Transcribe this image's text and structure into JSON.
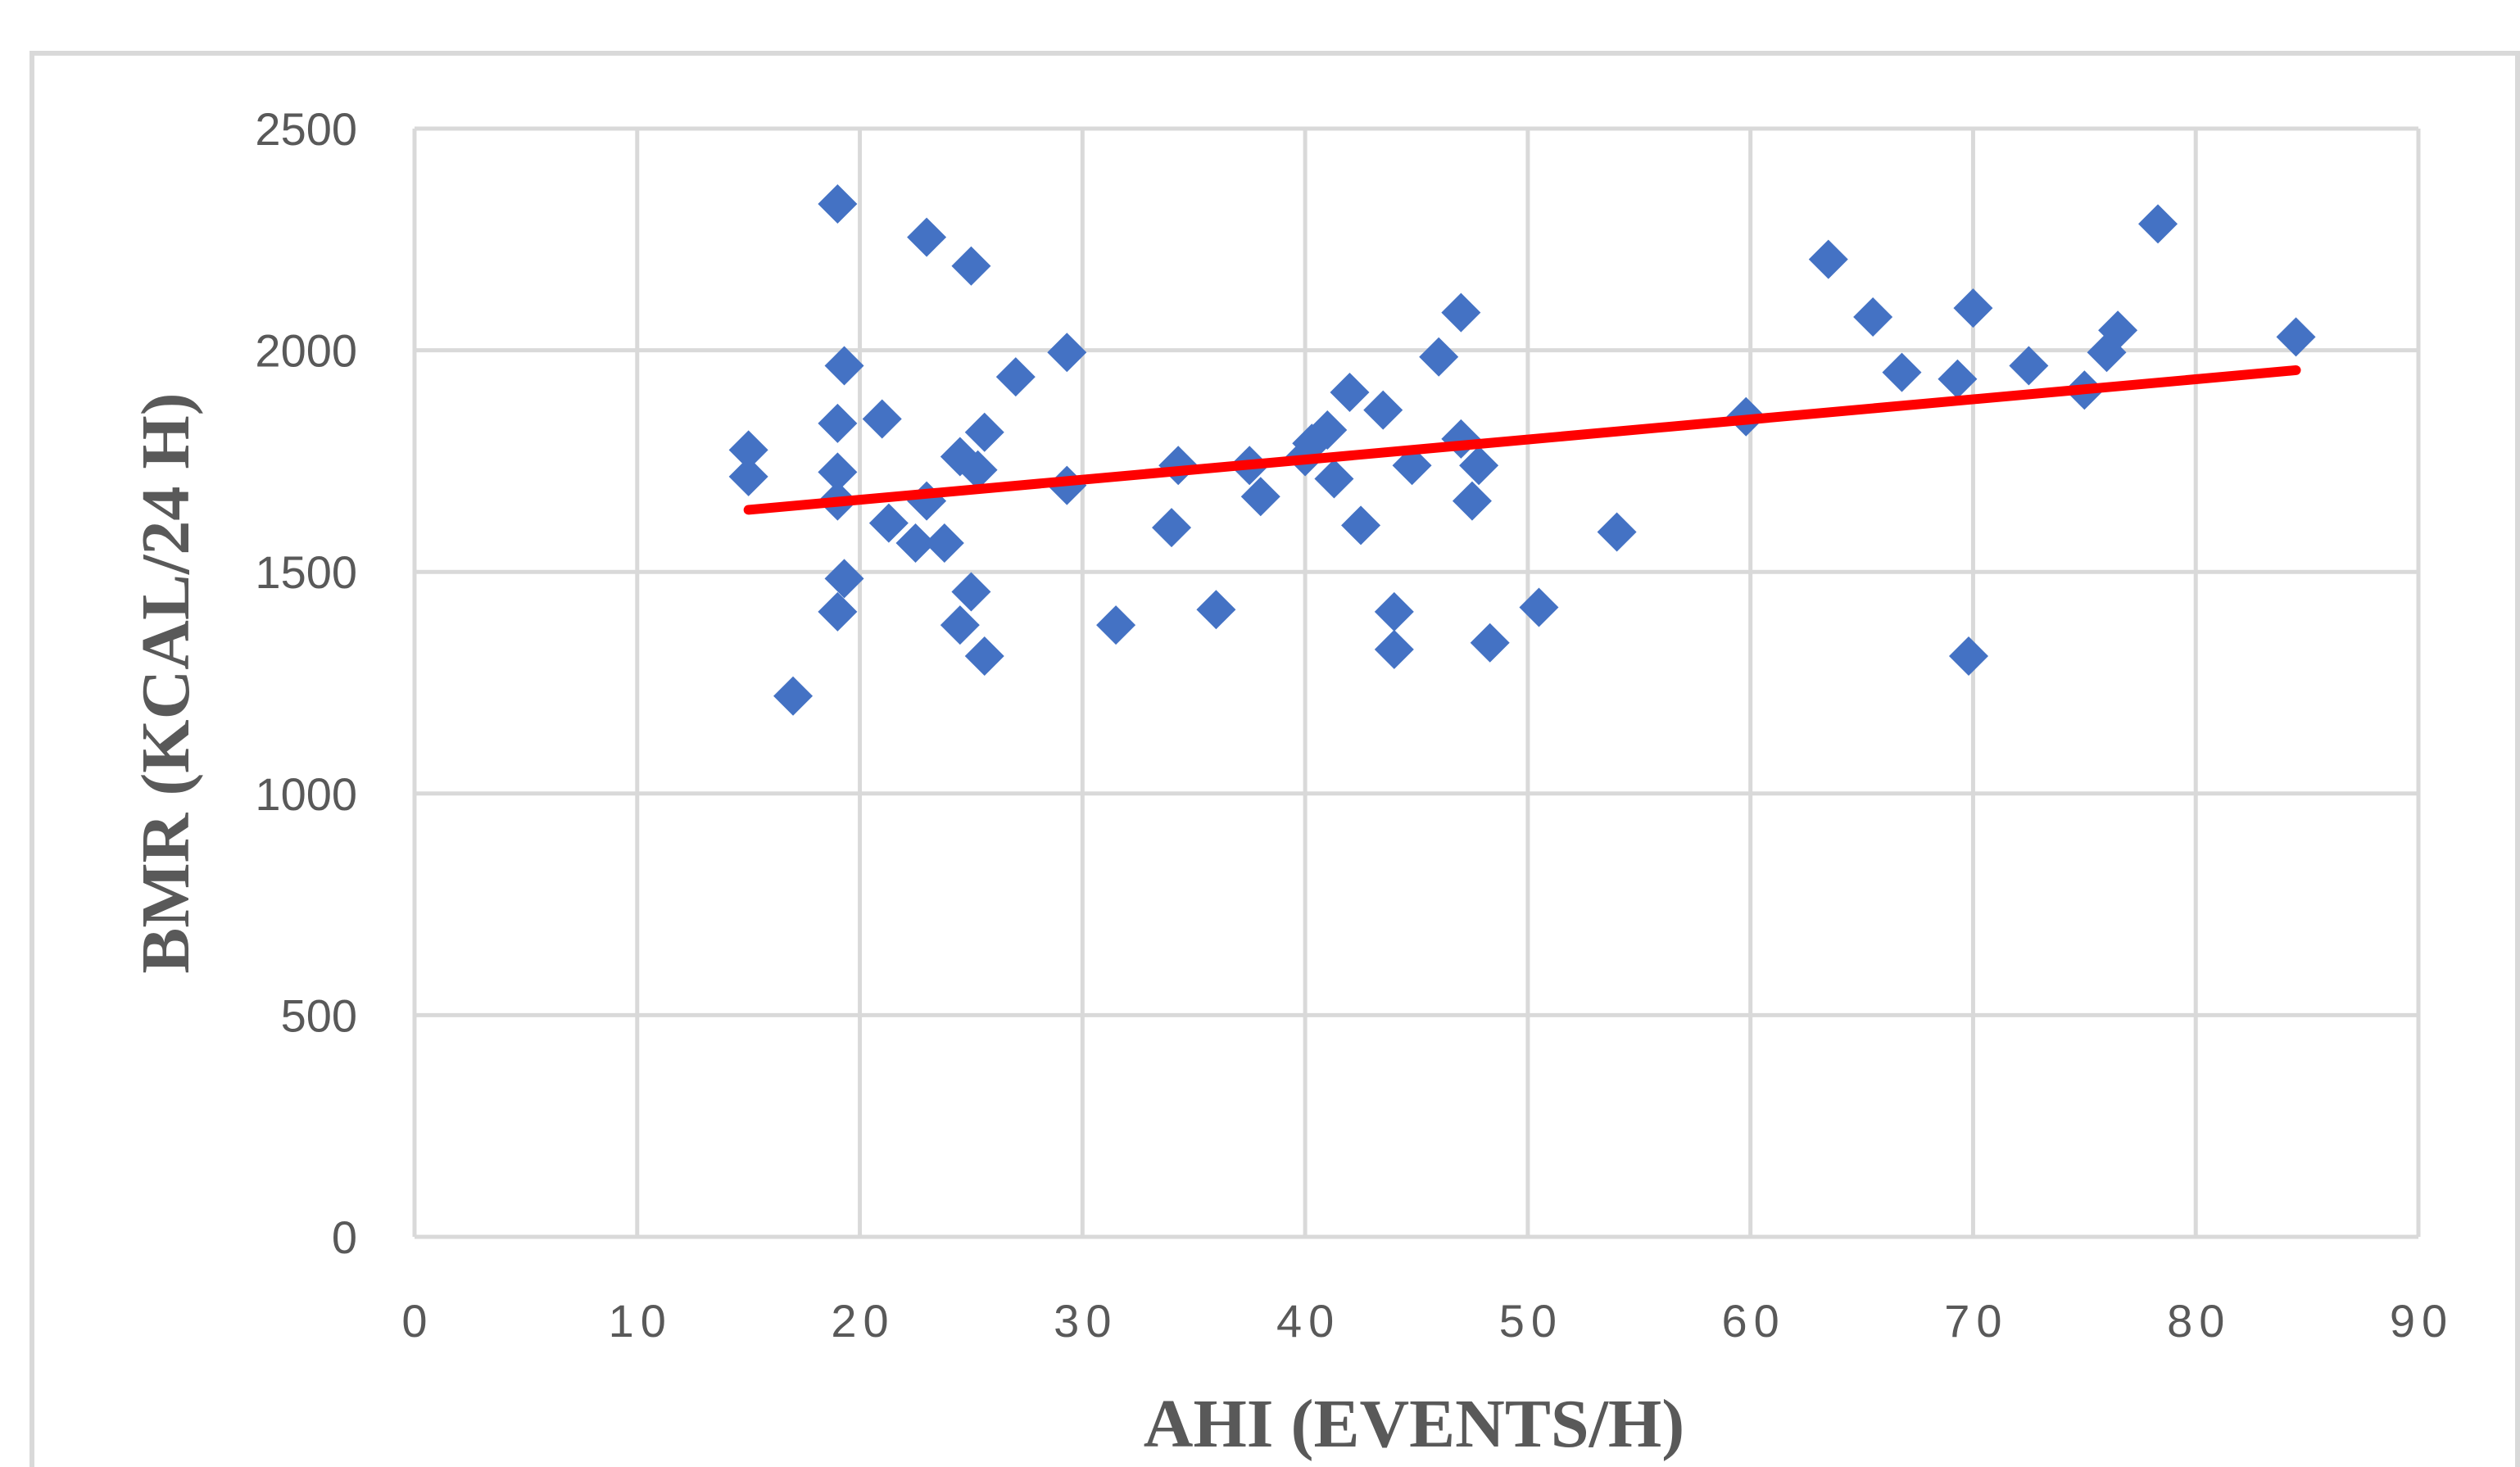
{
  "chart_data": {
    "type": "scatter",
    "xlabel": "AHI (EVENTS/H)",
    "ylabel": "BMR (KCAL/24 H)",
    "xlim": [
      0,
      90
    ],
    "ylim": [
      0,
      2500
    ],
    "xticks": [
      0,
      10,
      20,
      30,
      40,
      50,
      60,
      70,
      80,
      90
    ],
    "yticks": [
      0,
      500,
      1000,
      1500,
      2000,
      2500
    ],
    "grid": true,
    "legend": "none",
    "colors": {
      "points": "#4472c4",
      "trendline": "#ff0000",
      "grid": "#d9d9d9"
    },
    "trendline": {
      "x": [
        15,
        84.5
      ],
      "y": [
        1640,
        1955
      ]
    },
    "points": [
      [
        15,
        1775
      ],
      [
        15,
        1715
      ],
      [
        17,
        1220
      ],
      [
        19,
        2330
      ],
      [
        19,
        1835
      ],
      [
        19,
        1725
      ],
      [
        19,
        1660
      ],
      [
        19,
        1410
      ],
      [
        19.3,
        1965
      ],
      [
        19.3,
        1485
      ],
      [
        21,
        1845
      ],
      [
        21.3,
        1610
      ],
      [
        22.5,
        1565
      ],
      [
        23,
        2255
      ],
      [
        23,
        1660
      ],
      [
        23.8,
        1565
      ],
      [
        24.5,
        1760
      ],
      [
        24.5,
        1380
      ],
      [
        25,
        2190
      ],
      [
        25,
        1455
      ],
      [
        25.3,
        1730
      ],
      [
        25.6,
        1815
      ],
      [
        25.6,
        1310
      ],
      [
        27,
        1940
      ],
      [
        29.3,
        1995
      ],
      [
        29.3,
        1695
      ],
      [
        31.5,
        1380
      ],
      [
        34,
        1600
      ],
      [
        34.3,
        1740
      ],
      [
        36,
        1415
      ],
      [
        37.5,
        1740
      ],
      [
        38,
        1670
      ],
      [
        40,
        1760
      ],
      [
        40.3,
        1790
      ],
      [
        41,
        1820
      ],
      [
        41.3,
        1710
      ],
      [
        42,
        1905
      ],
      [
        42.5,
        1605
      ],
      [
        43.5,
        1865
      ],
      [
        44,
        1410
      ],
      [
        44,
        1325
      ],
      [
        44.8,
        1740
      ],
      [
        46,
        1985
      ],
      [
        47,
        2085
      ],
      [
        47,
        1800
      ],
      [
        47.5,
        1660
      ],
      [
        47.8,
        1740
      ],
      [
        48.3,
        1340
      ],
      [
        50.5,
        1420
      ],
      [
        54,
        1590
      ],
      [
        59.8,
        1850
      ],
      [
        63.5,
        2205
      ],
      [
        65.5,
        2075
      ],
      [
        66.8,
        1950
      ],
      [
        69.3,
        1935
      ],
      [
        69.8,
        1310
      ],
      [
        70,
        2095
      ],
      [
        72.5,
        1965
      ],
      [
        75,
        1910
      ],
      [
        76,
        1995
      ],
      [
        76.5,
        2045
      ],
      [
        78.3,
        2285
      ],
      [
        84.5,
        2030
      ]
    ]
  }
}
